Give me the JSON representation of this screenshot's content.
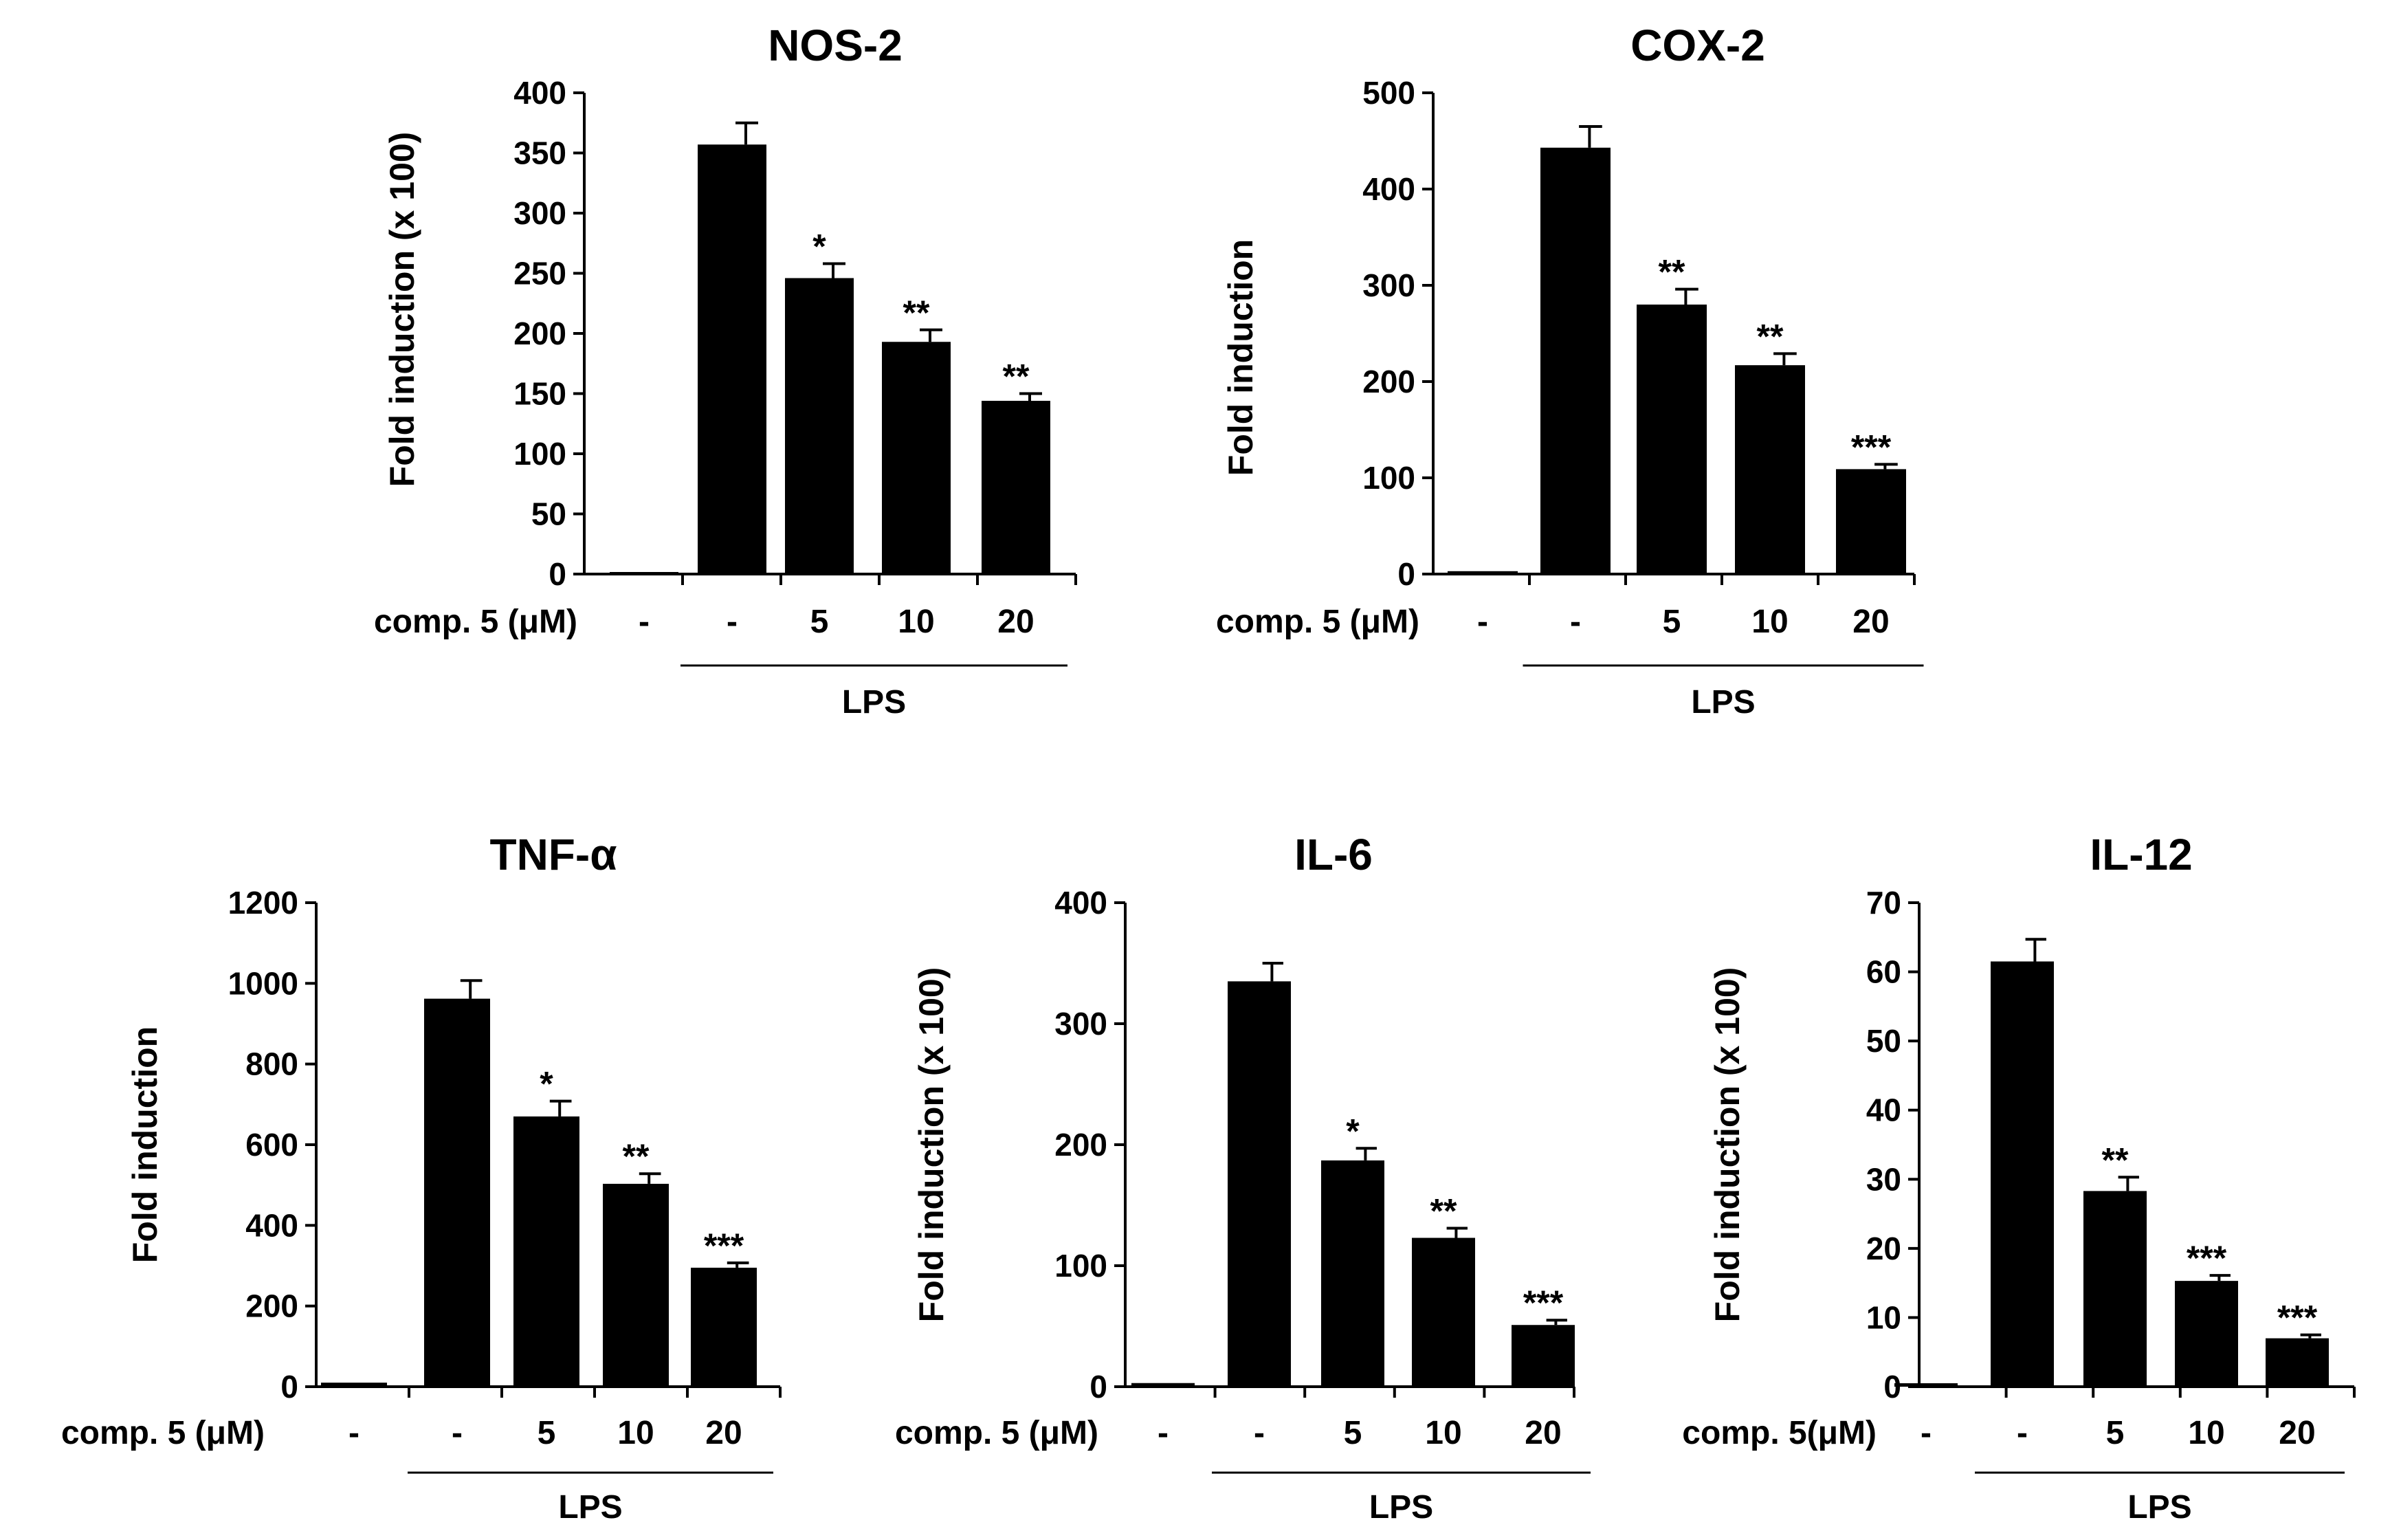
{
  "colors": {
    "bar": "#000000",
    "axis": "#000000",
    "background": "#ffffff"
  },
  "chart_data": [
    {
      "type": "bar",
      "title": "NOS-2",
      "ylabel": "Fold  induction (x 100)",
      "row_label": "comp. 5 (μM)",
      "categories": [
        "-",
        "-",
        "5",
        "10",
        "20"
      ],
      "values": [
        1,
        357,
        246,
        193,
        144
      ],
      "errors": [
        0,
        18,
        12,
        10,
        6
      ],
      "significance": [
        "",
        "",
        "*",
        "**",
        "**"
      ],
      "group_label": "LPS",
      "group_span": [
        1,
        4
      ],
      "ylim": [
        0,
        400
      ],
      "yticks": [
        0,
        50,
        100,
        150,
        200,
        250,
        300,
        350,
        400
      ],
      "ytick_labels": [
        "0",
        "50",
        "100",
        "150",
        "200",
        "250",
        "300",
        "350",
        "400"
      ],
      "grid": false
    },
    {
      "type": "bar",
      "title": "COX-2",
      "ylabel": "Fold  induction",
      "row_label": "comp. 5 (μM)",
      "categories": [
        "-",
        "-",
        "5",
        "10",
        "20"
      ],
      "values": [
        3,
        443,
        280,
        217,
        109
      ],
      "errors": [
        0,
        22,
        16,
        12,
        5
      ],
      "significance": [
        "",
        "",
        "**",
        "**",
        "***"
      ],
      "group_label": "LPS",
      "group_span": [
        1,
        4
      ],
      "ylim": [
        0,
        500
      ],
      "yticks": [
        0,
        100,
        200,
        300,
        400,
        500
      ],
      "ytick_labels": [
        "0",
        "100",
        "200",
        "300",
        "400",
        "500"
      ],
      "grid": false
    },
    {
      "type": "bar",
      "title": "TNF-α",
      "ylabel": "Fold  induction",
      "row_label": "comp. 5 (μM)",
      "categories": [
        "-",
        "-",
        "5",
        "10",
        "20"
      ],
      "values": [
        10,
        962,
        670,
        503,
        295
      ],
      "errors": [
        0,
        45,
        38,
        25,
        12
      ],
      "significance": [
        "",
        "",
        "*",
        "**",
        "***"
      ],
      "group_label": "LPS",
      "group_span": [
        1,
        4
      ],
      "ylim": [
        0,
        1200
      ],
      "yticks": [
        0,
        200,
        400,
        600,
        800,
        1000,
        1200
      ],
      "ytick_labels": [
        "0",
        "200",
        "400",
        "600",
        "800",
        "1000",
        "1200"
      ],
      "grid": false
    },
    {
      "type": "bar",
      "title": "IL-6",
      "ylabel": "Fold  induction (x 100)",
      "row_label": "comp. 5 (μM)",
      "categories": [
        "-",
        "-",
        "5",
        "10",
        "20"
      ],
      "values": [
        3,
        335,
        187,
        123,
        51
      ],
      "errors": [
        0,
        15,
        10,
        8,
        4
      ],
      "significance": [
        "",
        "",
        "*",
        "**",
        "***"
      ],
      "group_label": "LPS",
      "group_span": [
        1,
        4
      ],
      "ylim": [
        0,
        400
      ],
      "yticks": [
        0,
        100,
        200,
        300,
        400
      ],
      "ytick_labels": [
        "0",
        "100",
        "200",
        "300",
        "400"
      ],
      "grid": false
    },
    {
      "type": "bar",
      "title": "IL-12",
      "ylabel": "Fold  induction (x 100)",
      "row_label": "comp. 5(μM)",
      "categories": [
        "-",
        "-",
        "5",
        "10",
        "20"
      ],
      "values": [
        0.5,
        61.5,
        28.3,
        15.3,
        7
      ],
      "errors": [
        0,
        3.2,
        2,
        0.8,
        0.5
      ],
      "significance": [
        "",
        "",
        "**",
        "***",
        "***"
      ],
      "group_label": "LPS",
      "group_span": [
        1,
        4
      ],
      "ylim": [
        0,
        70
      ],
      "yticks": [
        0,
        10,
        20,
        30,
        40,
        50,
        60,
        70
      ],
      "ytick_labels": [
        "0",
        "10",
        "20",
        "30",
        "40",
        "50",
        "60",
        "70"
      ],
      "grid": false
    }
  ]
}
